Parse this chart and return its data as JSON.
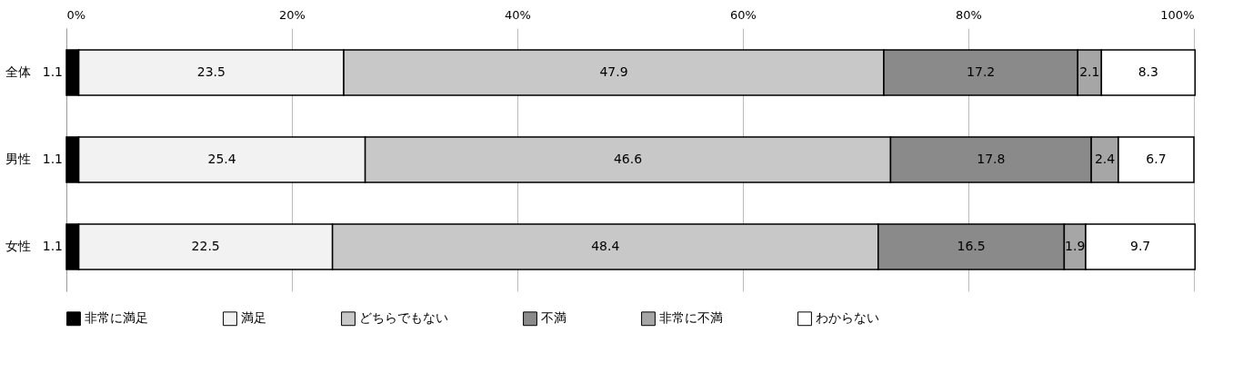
{
  "chart_data": {
    "type": "bar",
    "orientation": "horizontal",
    "stacked": true,
    "data_labels": true,
    "grid": "x",
    "legend": "bottom",
    "categories": [
      "全体",
      "男性",
      "女性"
    ],
    "xlim": [
      0,
      100
    ],
    "xticks": [
      {
        "value": 0,
        "label": "0%"
      },
      {
        "value": 20,
        "label": "20%"
      },
      {
        "value": 40,
        "label": "40%"
      },
      {
        "value": 60,
        "label": "60%"
      },
      {
        "value": 80,
        "label": "80%"
      },
      {
        "value": 100,
        "label": "100%"
      }
    ],
    "series": [
      {
        "name": "非常に満足",
        "color": "#000000",
        "values": [
          1.1,
          1.1,
          1.1
        ]
      },
      {
        "name": "満足",
        "color": "#f2f2f2",
        "values": [
          23.5,
          25.4,
          22.5
        ]
      },
      {
        "name": "どちらでもない",
        "color": "#c8c8c8",
        "values": [
          47.9,
          46.6,
          48.4
        ]
      },
      {
        "name": "不満",
        "color": "#8a8a8a",
        "values": [
          17.2,
          17.8,
          16.5
        ]
      },
      {
        "name": "非常に不満",
        "color": "#a6a6a6",
        "values": [
          2.1,
          2.4,
          1.9
        ]
      },
      {
        "name": "わからない",
        "color": "#ffffff",
        "values": [
          8.3,
          6.7,
          9.7
        ]
      }
    ]
  }
}
